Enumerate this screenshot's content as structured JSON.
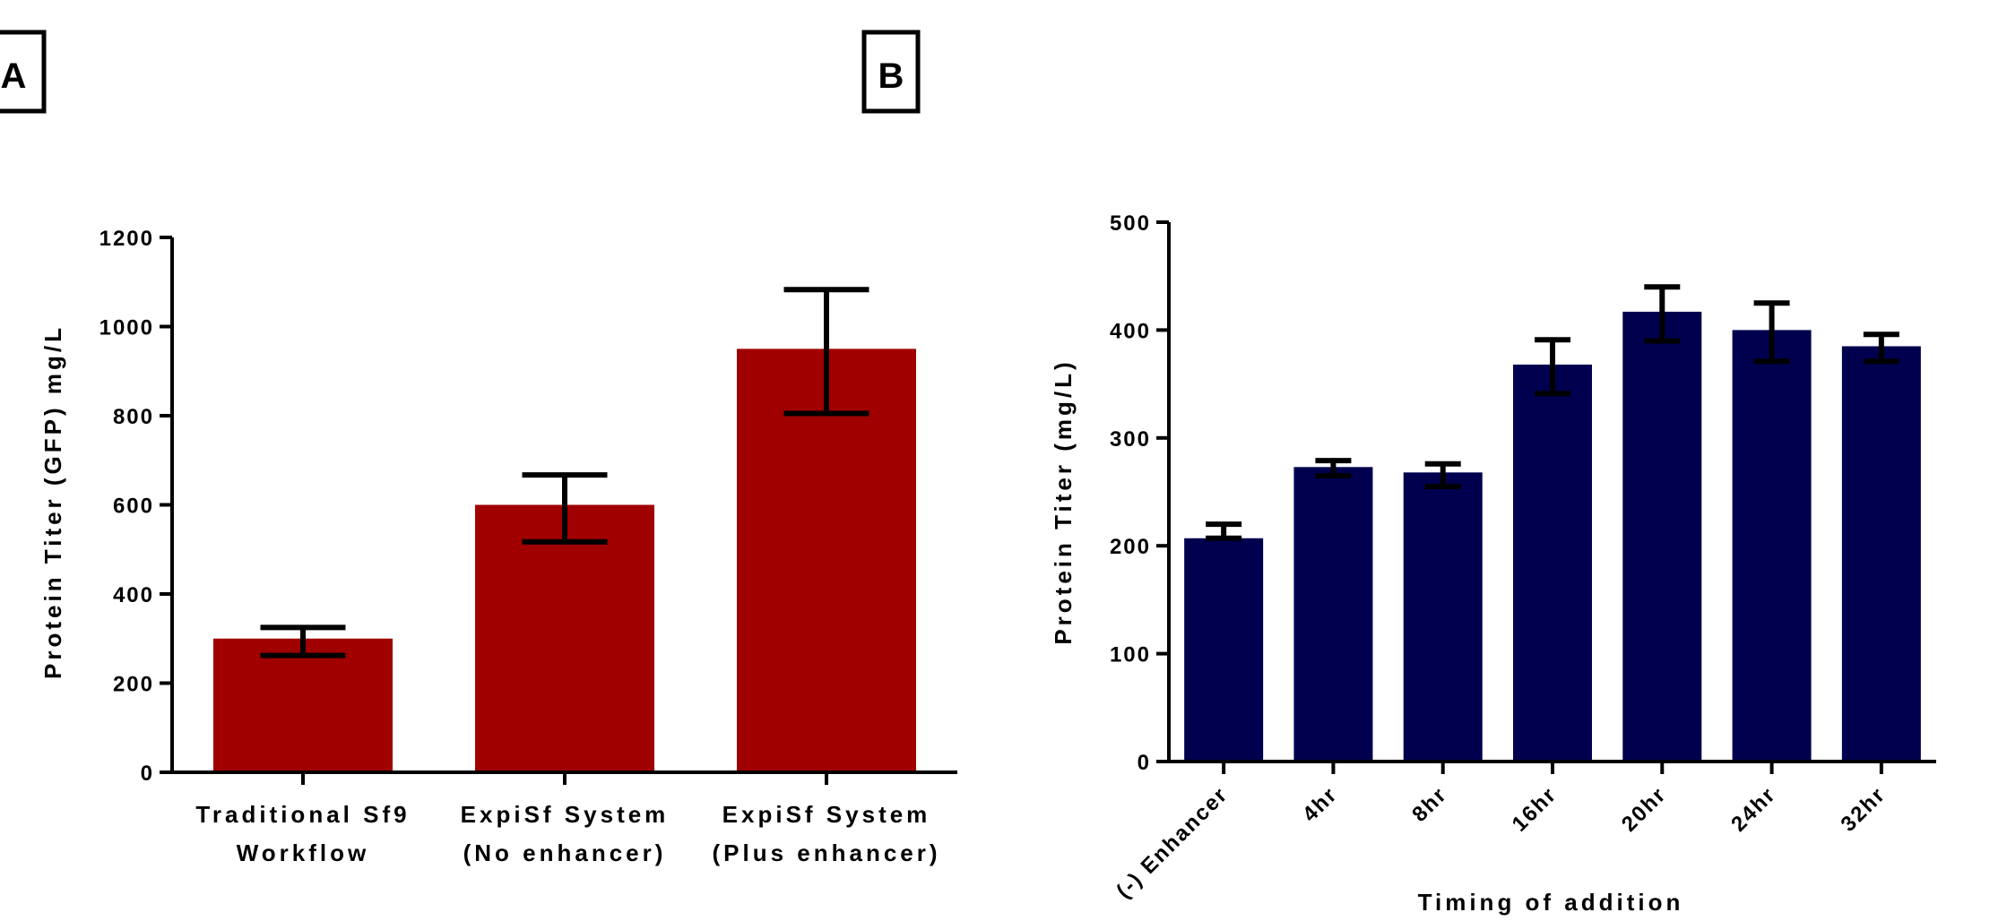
{
  "chart_data": [
    {
      "panel": "A",
      "type": "bar",
      "title": "",
      "xlabel": "",
      "ylabel": "Protein Titer (GFP) mg/L",
      "ylim": [
        0,
        1200
      ],
      "yticks": [
        0,
        200,
        400,
        600,
        800,
        1000,
        1200
      ],
      "categories": [
        [
          "Traditional Sf9",
          "Workflow"
        ],
        [
          "ExpiSf System",
          "(No enhancer)"
        ],
        [
          "ExpiSf System",
          "(Plus enhancer)"
        ]
      ],
      "values": [
        300,
        600,
        950
      ],
      "error_low": [
        262,
        517,
        805
      ],
      "error_high": [
        325,
        667,
        1083
      ],
      "bar_color": "#a00000",
      "grid": false,
      "legend": "none"
    },
    {
      "panel": "B",
      "type": "bar",
      "title": "",
      "xlabel": "Timing of addition",
      "ylabel": "Protein Titer (mg/L)",
      "ylim": [
        0,
        500
      ],
      "yticks": [
        0,
        100,
        200,
        300,
        400,
        500
      ],
      "categories": [
        "(-) Enhancer",
        "4hr",
        "8hr",
        "16hr",
        "20hr",
        "24hr",
        "32hr"
      ],
      "values": [
        207,
        273,
        268,
        368,
        417,
        400,
        385
      ],
      "error_low": [
        207,
        265,
        255,
        341,
        390,
        371,
        371
      ],
      "error_high": [
        220,
        279,
        276,
        391,
        440,
        425,
        396
      ],
      "bar_color": "#00004f",
      "grid": false,
      "legend": "none"
    }
  ]
}
